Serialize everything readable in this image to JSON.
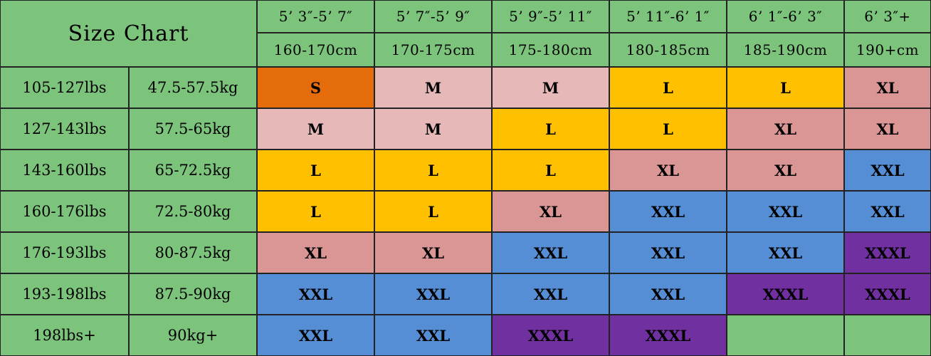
{
  "title": "Size Chart",
  "heights_ft": [
    "5’ 3″-5’ 7″",
    "5’ 7″-5’ 9″",
    "5’ 9″-5’ 11″",
    "5’ 11″-6’ 1″",
    "6’ 1″-6’ 3″",
    "6’ 3″+"
  ],
  "heights_cm": [
    "160-170cm",
    "170-175cm",
    "175-180cm",
    "180-185cm",
    "185-190cm",
    "190+cm"
  ],
  "rows": [
    {
      "lbs": "105-127lbs",
      "kg": "47.5-57.5kg",
      "sizes": [
        "S",
        "M",
        "M",
        "L",
        "L",
        "XL"
      ]
    },
    {
      "lbs": "127-143lbs",
      "kg": "57.5-65kg",
      "sizes": [
        "M",
        "M",
        "L",
        "L",
        "XL",
        "XL"
      ]
    },
    {
      "lbs": "143-160lbs",
      "kg": "65-72.5kg",
      "sizes": [
        "L",
        "L",
        "L",
        "XL",
        "XL",
        "XXL"
      ]
    },
    {
      "lbs": "160-176lbs",
      "kg": "72.5-80kg",
      "sizes": [
        "L",
        "L",
        "XL",
        "XXL",
        "XXL",
        "XXL"
      ]
    },
    {
      "lbs": "176-193lbs",
      "kg": "80-87.5kg",
      "sizes": [
        "XL",
        "XL",
        "XXL",
        "XXL",
        "XXL",
        "XXXL"
      ]
    },
    {
      "lbs": "193-198lbs",
      "kg": "87.5-90kg",
      "sizes": [
        "XXL",
        "XXL",
        "XXL",
        "XXL",
        "XXXL",
        "XXXL"
      ]
    },
    {
      "lbs": "198lbs+",
      "kg": "90kg+",
      "sizes": [
        "XXL",
        "XXL",
        "XXXL",
        "XXXL",
        "",
        ""
      ]
    }
  ],
  "size_colors": {
    "S": "#e46c0a",
    "M": "#e6b9b8",
    "L": "#ffc000",
    "XL": "#d99694",
    "XXL": "#558ed5",
    "XXXL": "#7030a0",
    "empty": "#7cc47c"
  },
  "label_bg": "#7cc47c"
}
